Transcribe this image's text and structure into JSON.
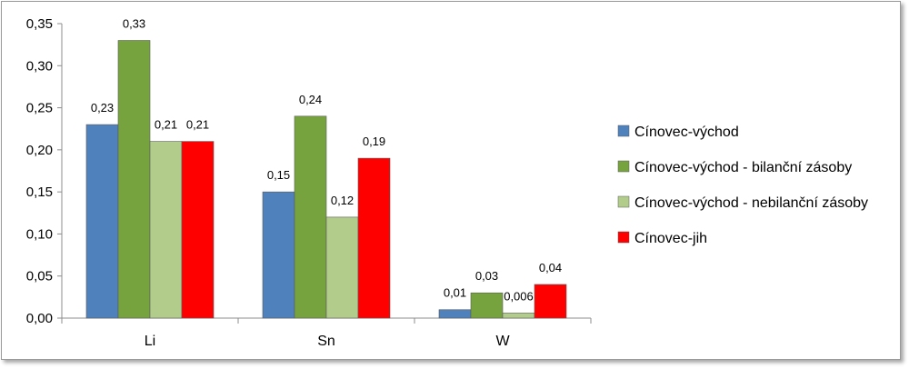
{
  "chart_data": {
    "type": "bar",
    "categories": [
      "Li",
      "Sn",
      "W"
    ],
    "series": [
      {
        "name": "Cínovec-východ",
        "values": [
          0.23,
          0.15,
          0.01
        ],
        "labels": [
          "0,23",
          "0,15",
          "0,01"
        ],
        "color": "#4f81bd"
      },
      {
        "name": "Cínovec-východ - bilanční zásoby",
        "values": [
          0.33,
          0.24,
          0.03
        ],
        "labels": [
          "0,33",
          "0,24",
          "0,03"
        ],
        "color": "#77a33f"
      },
      {
        "name": "Cínovec-východ - nebilanční zásoby",
        "values": [
          0.21,
          0.12,
          0.006
        ],
        "labels": [
          "0,21",
          "0,12",
          "0,006"
        ],
        "color": "#b2cc8c"
      },
      {
        "name": "Cínovec-jih",
        "values": [
          0.21,
          0.19,
          0.04
        ],
        "labels": [
          "0,21",
          "0,19",
          "0,04"
        ],
        "color": "#ff0000"
      }
    ],
    "yticks": [
      0,
      0.05,
      0.1,
      0.15,
      0.2,
      0.25,
      0.3,
      0.35
    ],
    "ytick_labels": [
      "0,00",
      "0,05",
      "0,10",
      "0,15",
      "0,20",
      "0,25",
      "0,30",
      "0,35"
    ],
    "ylim": [
      0,
      0.35
    ],
    "grid": false,
    "legend": "right",
    "title": "",
    "xlabel": "",
    "ylabel": ""
  }
}
